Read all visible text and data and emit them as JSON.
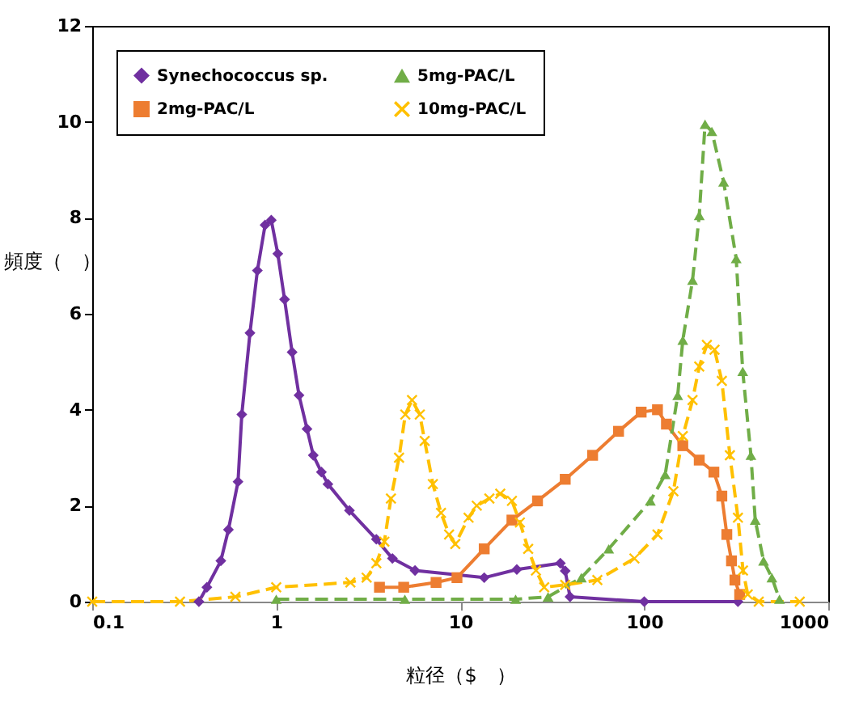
{
  "chart_data": {
    "type": "line",
    "xlabel": "粒径（$　）",
    "ylabel": "頻度（　）",
    "log": "x",
    "xlim": [
      0.1,
      1000
    ],
    "xticks": [
      0.1,
      1,
      10,
      100,
      1000
    ],
    "ylim": [
      0,
      12
    ],
    "yticks": [
      0,
      2,
      4,
      6,
      8,
      10,
      12
    ],
    "grid": false,
    "legend": "top left",
    "series": [
      {
        "name": "Synechococcus sp.",
        "color": "#7030a0",
        "marker": "diamond",
        "line_style": "solid",
        "x": [
          0.38,
          0.42,
          0.5,
          0.55,
          0.62,
          0.65,
          0.72,
          0.79,
          0.87,
          0.94,
          1.02,
          1.11,
          1.22,
          1.33,
          1.47,
          1.59,
          1.76,
          1.91,
          2.5,
          3.5,
          4.28,
          5.68,
          13.5,
          20.3,
          35,
          37.2,
          39.5,
          100,
          323
        ],
        "values": [
          0,
          0.3,
          0.85,
          1.5,
          2.5,
          3.9,
          5.6,
          6.9,
          7.85,
          7.95,
          7.25,
          6.3,
          5.2,
          4.3,
          3.6,
          3.05,
          2.7,
          2.45,
          1.9,
          1.3,
          0.9,
          0.65,
          0.5,
          0.67,
          0.8,
          0.64,
          0.1,
          0,
          0
        ]
      },
      {
        "name": "2mg-PAC/L",
        "color": "#ed7d31",
        "marker": "square",
        "line_style": "solid",
        "x": [
          3.64,
          4.93,
          7.39,
          9.6,
          13.5,
          19.1,
          26.3,
          37.2,
          52.4,
          72.5,
          96.2,
          118,
          132,
          162,
          199,
          239,
          264,
          281,
          298,
          311,
          330
        ],
        "values": [
          0.3,
          0.3,
          0.4,
          0.5,
          1.1,
          1.7,
          2.1,
          2.55,
          3.05,
          3.55,
          3.95,
          4.0,
          3.7,
          3.25,
          2.95,
          2.7,
          2.2,
          1.4,
          0.85,
          0.45,
          0.15
        ]
      },
      {
        "name": "5mg-PAC/L",
        "color": "#70ad47",
        "marker": "triangle",
        "line_style": "dashed",
        "x": [
          1,
          5,
          20,
          30,
          45.5,
          64.1,
          108,
          130,
          152,
          162,
          183,
          199,
          214,
          233,
          270,
          316,
          343,
          380,
          401,
          445,
          494,
          543
        ],
        "values": [
          0.05,
          0.05,
          0.05,
          0.1,
          0.5,
          1.1,
          2.1,
          2.65,
          4.3,
          5.45,
          6.7,
          8.05,
          9.95,
          9.8,
          8.75,
          7.15,
          4.8,
          3.05,
          1.7,
          0.85,
          0.5,
          0.05
        ]
      },
      {
        "name": "10mg-PAC/L",
        "color": "#ffc000",
        "marker": "cross",
        "line_style": "dashed",
        "x": [
          0.1,
          0.3,
          0.6,
          1.0,
          2.53,
          3.1,
          3.5,
          3.87,
          4.2,
          4.65,
          5.03,
          5.47,
          6.03,
          6.41,
          7.1,
          7.86,
          8.7,
          9.4,
          11.1,
          12.3,
          14.4,
          16.5,
          19.1,
          21.1,
          23.4,
          25.8,
          28.6,
          37.2,
          55.6,
          88.4,
          118,
          144,
          162,
          183,
          199,
          219,
          241,
          264,
          292,
          323,
          344,
          365,
          419,
          700
        ],
        "values": [
          0,
          0,
          0.1,
          0.3,
          0.4,
          0.5,
          0.8,
          1.25,
          2.15,
          3.0,
          3.9,
          4.2,
          3.9,
          3.35,
          2.45,
          1.85,
          1.4,
          1.2,
          1.75,
          2.0,
          2.15,
          2.25,
          2.1,
          1.65,
          1.1,
          0.65,
          0.3,
          0.35,
          0.45,
          0.9,
          1.4,
          2.3,
          3.45,
          4.2,
          4.9,
          5.35,
          5.25,
          4.6,
          3.05,
          1.75,
          0.65,
          0.15,
          0,
          0
        ]
      }
    ]
  }
}
